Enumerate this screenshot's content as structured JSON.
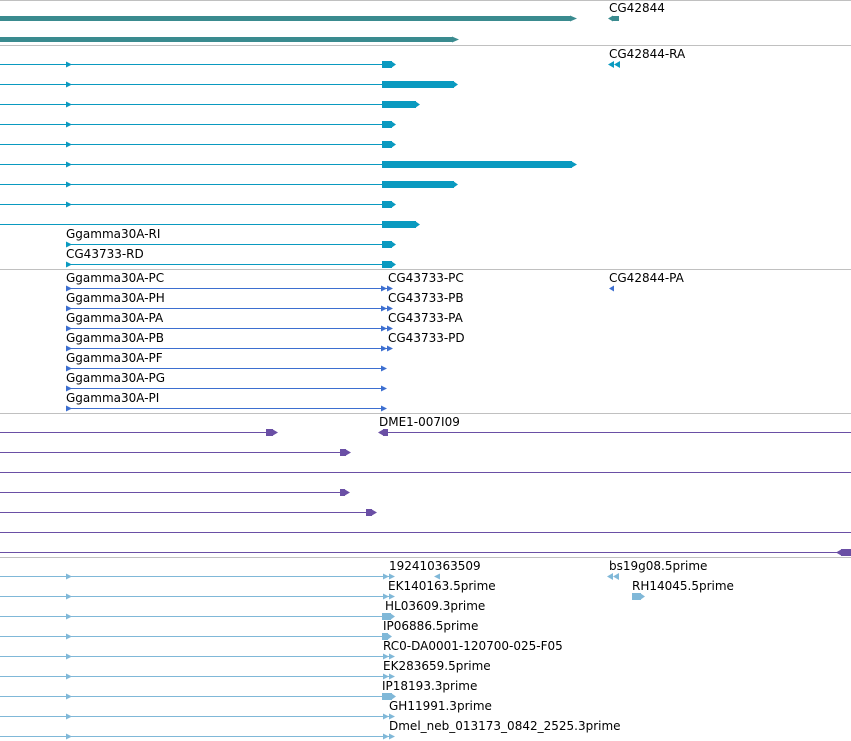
{
  "colors": {
    "gene": "#3a8b8f",
    "transcript_ra": "#0a9ac0",
    "transcript_pa": "#3d6fd0",
    "cdna": "#6a4fa5",
    "est": "#80b8d8",
    "separator": "#c0c0c0"
  },
  "tracks": {
    "genes": {
      "labels": [
        "CG42844"
      ]
    },
    "transcripts_ra": {
      "labels": [
        "CG42844-RA",
        "Ggamma30A-RI",
        "CG43733-RD"
      ]
    },
    "transcripts_pa": {
      "labels": [
        "Ggamma30A-PC",
        "Ggamma30A-PH",
        "Ggamma30A-PA",
        "Ggamma30A-PB",
        "Ggamma30A-PF",
        "Ggamma30A-PG",
        "Ggamma30A-PI",
        "CG43733-PC",
        "CG43733-PB",
        "CG43733-PA",
        "CG43733-PD",
        "CG42844-PA"
      ]
    },
    "cdna": {
      "labels": [
        "DME1-007I09"
      ]
    },
    "est": {
      "labels": [
        "192410363509",
        "EK140163.5prime",
        "HL03609.3prime",
        "IP06886.5prime",
        "RC0-DA0001-120700-025-F05",
        "EK283659.5prime",
        "IP18193.3prime",
        "GH11991.3prime",
        "Dmel_neb_013173_0842_2525.3prime",
        "bs19g08.5prime",
        "RH14045.5prime"
      ]
    }
  }
}
